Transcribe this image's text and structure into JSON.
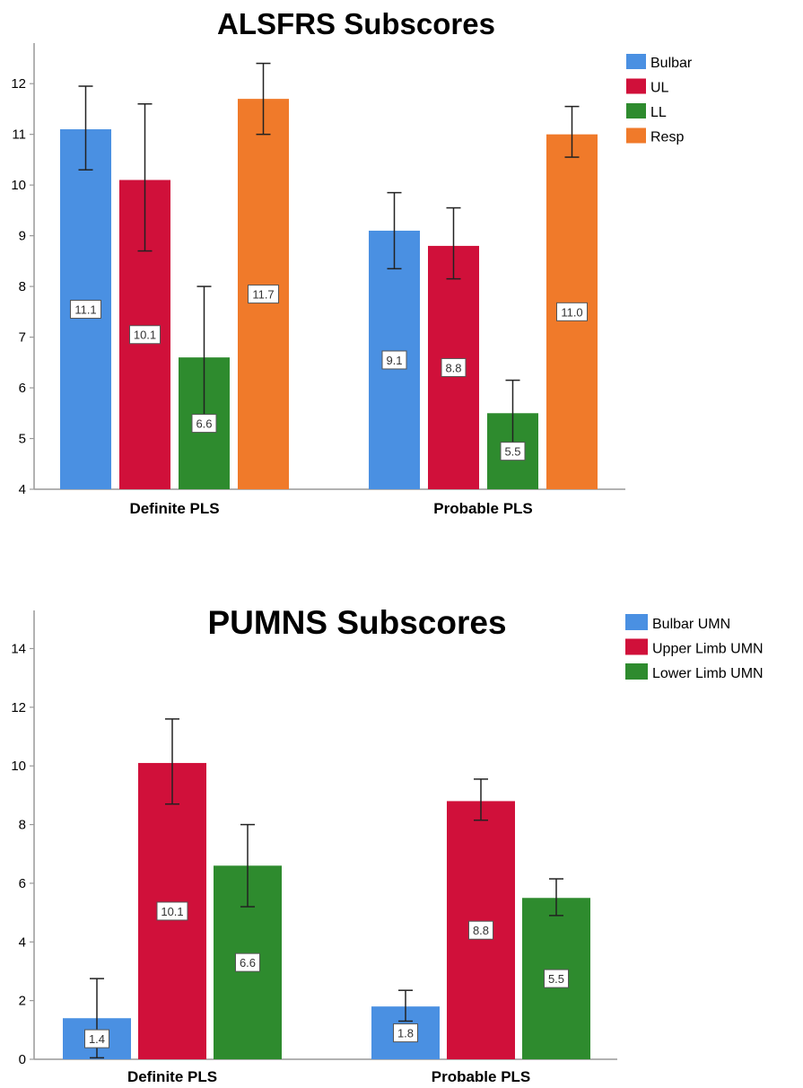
{
  "chart_data": [
    {
      "type": "bar",
      "title": "ALSFRS Subscores",
      "categories": [
        "Definite PLS",
        "Probable PLS"
      ],
      "ylim": [
        4,
        12.8
      ],
      "yticks": [
        4,
        5,
        6,
        7,
        8,
        9,
        10,
        11,
        12
      ],
      "legend_position": "top-right",
      "series": [
        {
          "name": "Bulbar",
          "color": "#4a90e2",
          "values": [
            11.1,
            9.1
          ],
          "labels": [
            "11.1",
            "9.1"
          ],
          "err_low": [
            10.3,
            8.35
          ],
          "err_high": [
            11.95,
            9.85
          ]
        },
        {
          "name": "UL",
          "color": "#d0103a",
          "values": [
            10.1,
            8.8
          ],
          "labels": [
            "10.1",
            "8.8"
          ],
          "err_low": [
            8.7,
            8.15
          ],
          "err_high": [
            11.6,
            9.55
          ]
        },
        {
          "name": "LL",
          "color": "#2e8b2e",
          "values": [
            6.6,
            5.5
          ],
          "labels": [
            "6.6",
            "5.5"
          ],
          "err_low": [
            5.2,
            4.9
          ],
          "err_high": [
            8.0,
            6.15
          ]
        },
        {
          "name": "Resp",
          "color": "#f07a2a",
          "values": [
            11.7,
            11.0
          ],
          "labels": [
            "11.7",
            "11.0"
          ],
          "err_low": [
            11.0,
            10.55
          ],
          "err_high": [
            12.4,
            11.55
          ]
        }
      ]
    },
    {
      "type": "bar",
      "title": "PUMNS Subscores",
      "categories": [
        "Definite PLS",
        "Probable PLS"
      ],
      "ylim": [
        0,
        15.3
      ],
      "yticks": [
        0,
        2,
        4,
        6,
        8,
        10,
        12,
        14
      ],
      "legend_position": "top-right",
      "series": [
        {
          "name": "Bulbar UMN",
          "color": "#4a90e2",
          "values": [
            1.4,
            1.8
          ],
          "labels": [
            "1.4",
            "1.8"
          ],
          "err_low": [
            0.05,
            1.3
          ],
          "err_high": [
            2.75,
            2.35
          ]
        },
        {
          "name": "Upper Limb UMN",
          "color": "#d0103a",
          "values": [
            10.1,
            8.8
          ],
          "labels": [
            "10.1",
            "8.8"
          ],
          "err_low": [
            8.7,
            8.15
          ],
          "err_high": [
            11.6,
            9.55
          ]
        },
        {
          "name": "Lower Limb UMN",
          "color": "#2e8b2e",
          "values": [
            6.6,
            5.5
          ],
          "labels": [
            "6.6",
            "5.5"
          ],
          "err_low": [
            5.2,
            4.9
          ],
          "err_high": [
            8.0,
            6.15
          ]
        }
      ]
    }
  ]
}
